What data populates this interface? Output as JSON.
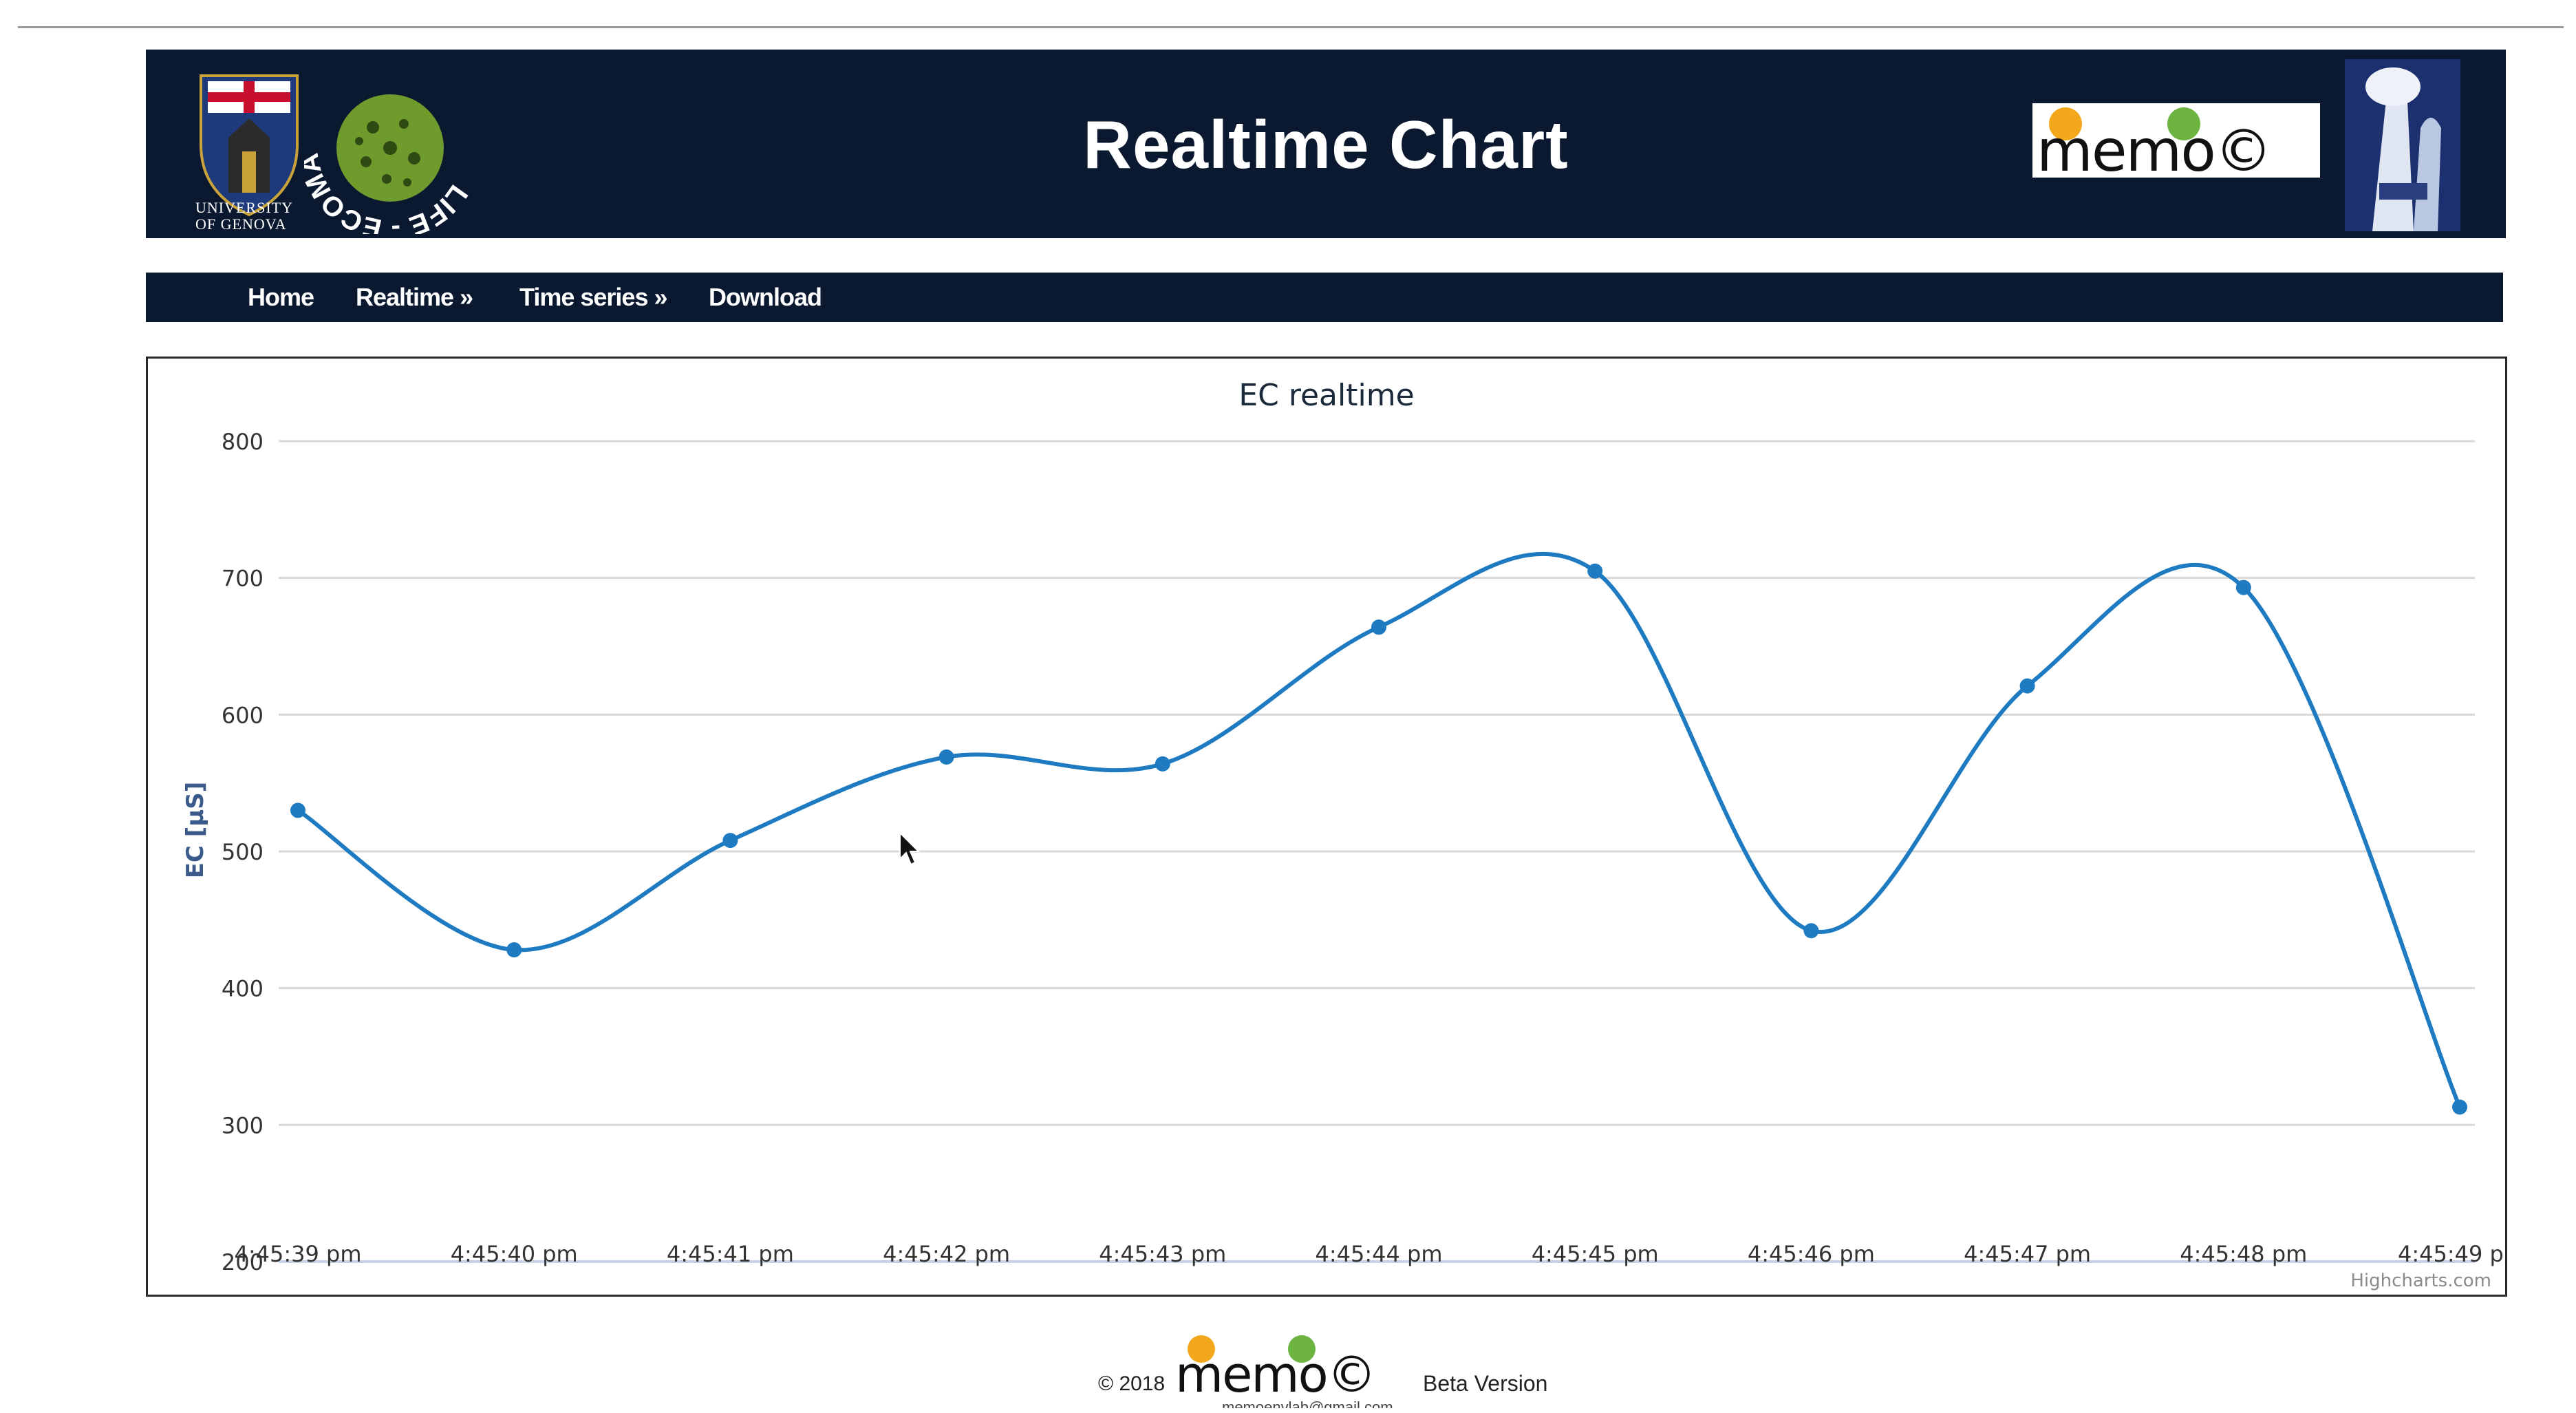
{
  "header": {
    "title": "Realtime Chart",
    "university_caption_line1": "UNIVERSITY",
    "university_caption_line2": "OF GENOVA",
    "life_logo_text": "LIFE - ECOMAWARU",
    "memo_logo_text": "memo©"
  },
  "nav": {
    "items": [
      {
        "label": "Home"
      },
      {
        "label": "Realtime »"
      },
      {
        "label": "Time series »"
      },
      {
        "label": "Download"
      }
    ]
  },
  "chart_data": {
    "type": "line",
    "title": "EC realtime",
    "ylabel": "EC [μS]",
    "xlabel": "",
    "ylim": [
      200,
      800
    ],
    "yticks": [
      200,
      300,
      400,
      500,
      600,
      700,
      800
    ],
    "categories": [
      "4:45:39 pm",
      "4:45:40 pm",
      "4:45:41 pm",
      "4:45:42 pm",
      "4:45:43 pm",
      "4:45:44 pm",
      "4:45:45 pm",
      "4:45:46 pm",
      "4:45:47 pm",
      "4:45:48 pm",
      "4:45:49 p"
    ],
    "series": [
      {
        "values": [
          530,
          428,
          508,
          569,
          564,
          664,
          705,
          442,
          621,
          693,
          313
        ]
      }
    ],
    "grid": true,
    "legend": "none",
    "credit": "Highcharts.com",
    "line_color": "#1f7bc1"
  },
  "footer": {
    "copyright": "© 2018",
    "logo_text": "memo©",
    "beta": "Beta Version",
    "email": "memoenvlab@gmail.com"
  }
}
